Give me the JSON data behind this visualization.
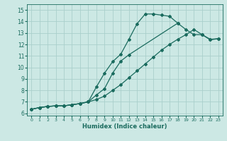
{
  "xlabel": "Humidex (Indice chaleur)",
  "bg_color": "#cce8e4",
  "grid_color": "#aacfcb",
  "line_color": "#1a6b5e",
  "xlim": [
    -0.5,
    23.5
  ],
  "ylim": [
    5.8,
    15.5
  ],
  "yticks": [
    6,
    7,
    8,
    9,
    10,
    11,
    12,
    13,
    14,
    15
  ],
  "xticks": [
    0,
    1,
    2,
    3,
    4,
    5,
    6,
    7,
    8,
    9,
    10,
    11,
    12,
    13,
    14,
    15,
    16,
    17,
    18,
    19,
    20,
    21,
    22,
    23
  ],
  "line1_x": [
    0,
    1,
    2,
    3,
    4,
    5,
    6,
    7,
    8,
    9,
    10,
    11,
    12,
    13,
    14,
    15,
    16,
    17,
    18,
    19,
    20,
    21,
    22,
    23
  ],
  "line1_y": [
    6.35,
    6.5,
    6.6,
    6.65,
    6.65,
    6.75,
    6.85,
    7.0,
    8.3,
    9.5,
    10.5,
    11.15,
    12.45,
    13.8,
    14.65,
    14.65,
    14.55,
    14.45,
    13.85,
    null,
    null,
    null,
    null,
    null
  ],
  "line2_x": [
    0,
    1,
    2,
    3,
    4,
    5,
    6,
    7,
    8,
    9,
    10,
    11,
    12,
    13,
    14,
    15,
    16,
    17,
    18,
    19,
    20,
    21,
    22,
    23
  ],
  "line2_y": [
    6.35,
    6.5,
    6.6,
    6.65,
    6.65,
    6.75,
    6.85,
    7.0,
    7.6,
    8.15,
    9.5,
    10.55,
    11.1,
    null,
    null,
    null,
    null,
    null,
    13.85,
    13.3,
    12.85,
    12.85,
    12.4,
    12.5
  ],
  "line3_x": [
    0,
    1,
    2,
    3,
    4,
    5,
    6,
    7,
    8,
    9,
    10,
    11,
    12,
    13,
    14,
    15,
    16,
    17,
    18,
    19,
    20,
    21,
    22,
    23
  ],
  "line3_y": [
    6.35,
    6.5,
    6.6,
    6.65,
    6.65,
    6.75,
    6.85,
    7.0,
    7.2,
    7.5,
    8.0,
    8.5,
    9.1,
    9.7,
    10.3,
    10.9,
    11.5,
    12.0,
    12.45,
    12.85,
    13.3,
    12.85,
    12.45,
    12.5
  ]
}
